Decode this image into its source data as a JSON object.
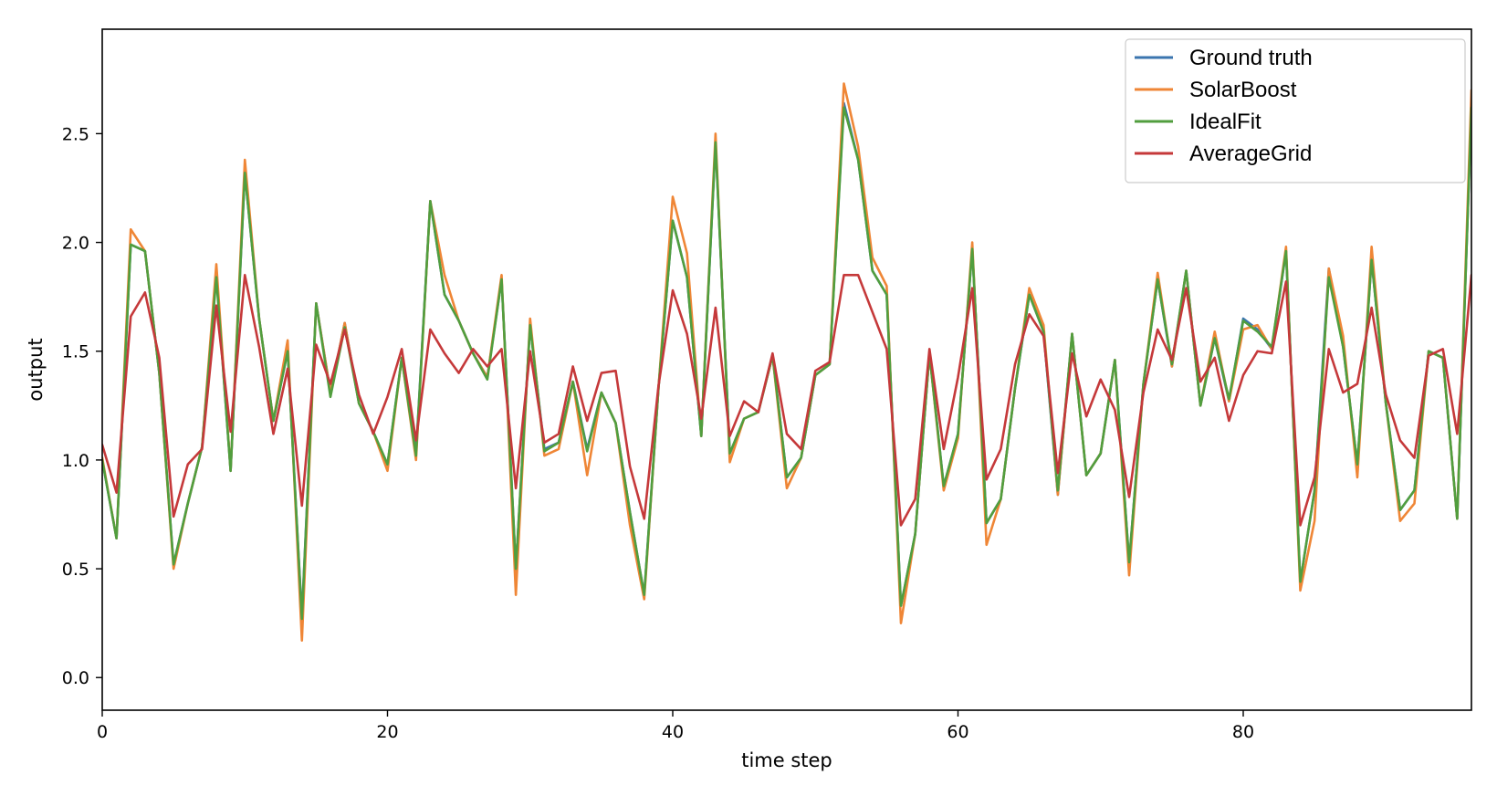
{
  "chart_data": {
    "type": "line",
    "xlabel": "time step",
    "ylabel": "output",
    "xlim": [
      0,
      96
    ],
    "ylim": [
      -0.15,
      2.98
    ],
    "xticks": [
      0,
      20,
      40,
      60,
      80
    ],
    "yticks": [
      0.0,
      0.5,
      1.0,
      1.5,
      2.0,
      2.5
    ],
    "xtick_labels": [
      "0",
      "20",
      "40",
      "60",
      "80"
    ],
    "ytick_labels": [
      "0.0",
      "0.5",
      "1.0",
      "1.5",
      "2.0",
      "2.5"
    ],
    "grid": false,
    "legend_position": "top-right",
    "series": [
      {
        "name": "Ground truth",
        "color": "#3b75af",
        "values": [
          1.0,
          0.64,
          1.99,
          1.96,
          1.4,
          0.52,
          0.8,
          1.06,
          1.85,
          0.95,
          2.32,
          1.65,
          1.18,
          1.5,
          0.28,
          1.72,
          1.31,
          1.63,
          1.26,
          1.13,
          0.98,
          1.47,
          1.03,
          2.19,
          1.76,
          1.64,
          1.49,
          1.38,
          1.83,
          0.5,
          1.62,
          1.05,
          1.08,
          1.36,
          1.05,
          1.31,
          1.17,
          0.76,
          0.38,
          1.33,
          2.1,
          1.84,
          1.11,
          2.46,
          1.03,
          1.19,
          1.22,
          1.48,
          0.92,
          1.01,
          1.39,
          1.44,
          2.64,
          2.38,
          1.87,
          1.76,
          0.33,
          0.66,
          1.49,
          0.88,
          1.12,
          1.97,
          0.71,
          0.82,
          1.33,
          1.76,
          1.59,
          0.84,
          1.58,
          0.93,
          1.03,
          1.46,
          0.53,
          1.35,
          1.83,
          1.43,
          1.87,
          1.25,
          1.56,
          1.27,
          1.65,
          1.6,
          1.51,
          1.96,
          0.44,
          0.86,
          1.88,
          1.52,
          0.98,
          1.92,
          1.26,
          0.77,
          0.86,
          1.5,
          1.47,
          0.73,
          2.62
        ]
      },
      {
        "name": "SolarBoost",
        "color": "#ef8636",
        "values": [
          1.01,
          0.64,
          2.06,
          1.96,
          1.4,
          0.5,
          0.8,
          1.06,
          1.9,
          0.95,
          2.38,
          1.65,
          1.18,
          1.55,
          0.17,
          1.72,
          1.31,
          1.63,
          1.26,
          1.13,
          0.95,
          1.47,
          1.0,
          2.19,
          1.85,
          1.64,
          1.49,
          1.38,
          1.85,
          0.38,
          1.65,
          1.02,
          1.05,
          1.36,
          0.93,
          1.31,
          1.17,
          0.7,
          0.36,
          1.33,
          2.21,
          1.95,
          1.11,
          2.5,
          0.99,
          1.19,
          1.22,
          1.48,
          0.87,
          1.01,
          1.39,
          1.44,
          2.73,
          2.44,
          1.93,
          1.8,
          0.25,
          0.66,
          1.49,
          0.86,
          1.1,
          2.0,
          0.61,
          0.82,
          1.33,
          1.79,
          1.62,
          0.84,
          1.58,
          0.93,
          1.03,
          1.46,
          0.47,
          1.35,
          1.86,
          1.43,
          1.87,
          1.25,
          1.59,
          1.27,
          1.6,
          1.62,
          1.51,
          1.98,
          0.4,
          0.72,
          1.88,
          1.57,
          0.92,
          1.98,
          1.26,
          0.72,
          0.8,
          1.5,
          1.47,
          0.73,
          2.7
        ]
      },
      {
        "name": "IdealFit",
        "color": "#519e3e",
        "values": [
          1.0,
          0.64,
          1.99,
          1.96,
          1.4,
          0.52,
          0.8,
          1.06,
          1.84,
          0.95,
          2.32,
          1.65,
          1.18,
          1.5,
          0.27,
          1.72,
          1.29,
          1.61,
          1.26,
          1.13,
          0.98,
          1.47,
          1.02,
          2.19,
          1.76,
          1.64,
          1.49,
          1.37,
          1.83,
          0.5,
          1.62,
          1.04,
          1.08,
          1.36,
          1.04,
          1.31,
          1.17,
          0.76,
          0.38,
          1.33,
          2.1,
          1.84,
          1.11,
          2.46,
          1.03,
          1.19,
          1.22,
          1.48,
          0.92,
          1.01,
          1.39,
          1.44,
          2.62,
          2.38,
          1.87,
          1.76,
          0.33,
          0.66,
          1.49,
          0.88,
          1.12,
          1.97,
          0.71,
          0.82,
          1.33,
          1.76,
          1.59,
          0.86,
          1.58,
          0.93,
          1.03,
          1.46,
          0.53,
          1.35,
          1.83,
          1.44,
          1.87,
          1.25,
          1.56,
          1.28,
          1.64,
          1.59,
          1.52,
          1.96,
          0.44,
          0.86,
          1.84,
          1.52,
          0.98,
          1.92,
          1.26,
          0.77,
          0.86,
          1.5,
          1.47,
          0.73,
          2.62
        ]
      },
      {
        "name": "AverageGrid",
        "color": "#c5393a",
        "values": [
          1.07,
          0.85,
          1.66,
          1.77,
          1.47,
          0.74,
          0.98,
          1.05,
          1.71,
          1.13,
          1.85,
          1.52,
          1.12,
          1.42,
          0.79,
          1.53,
          1.35,
          1.6,
          1.3,
          1.12,
          1.29,
          1.51,
          1.09,
          1.6,
          1.49,
          1.4,
          1.51,
          1.43,
          1.51,
          0.87,
          1.5,
          1.08,
          1.12,
          1.43,
          1.18,
          1.4,
          1.41,
          0.97,
          0.73,
          1.34,
          1.78,
          1.58,
          1.19,
          1.7,
          1.11,
          1.27,
          1.22,
          1.49,
          1.12,
          1.05,
          1.41,
          1.45,
          1.85,
          1.85,
          1.68,
          1.51,
          0.7,
          0.82,
          1.51,
          1.05,
          1.38,
          1.79,
          0.91,
          1.05,
          1.44,
          1.67,
          1.57,
          0.94,
          1.49,
          1.2,
          1.37,
          1.23,
          0.83,
          1.31,
          1.6,
          1.46,
          1.79,
          1.36,
          1.47,
          1.18,
          1.39,
          1.5,
          1.49,
          1.82,
          0.7,
          0.92,
          1.51,
          1.31,
          1.35,
          1.7,
          1.3,
          1.09,
          1.01,
          1.48,
          1.51,
          1.12,
          1.85
        ]
      }
    ]
  }
}
